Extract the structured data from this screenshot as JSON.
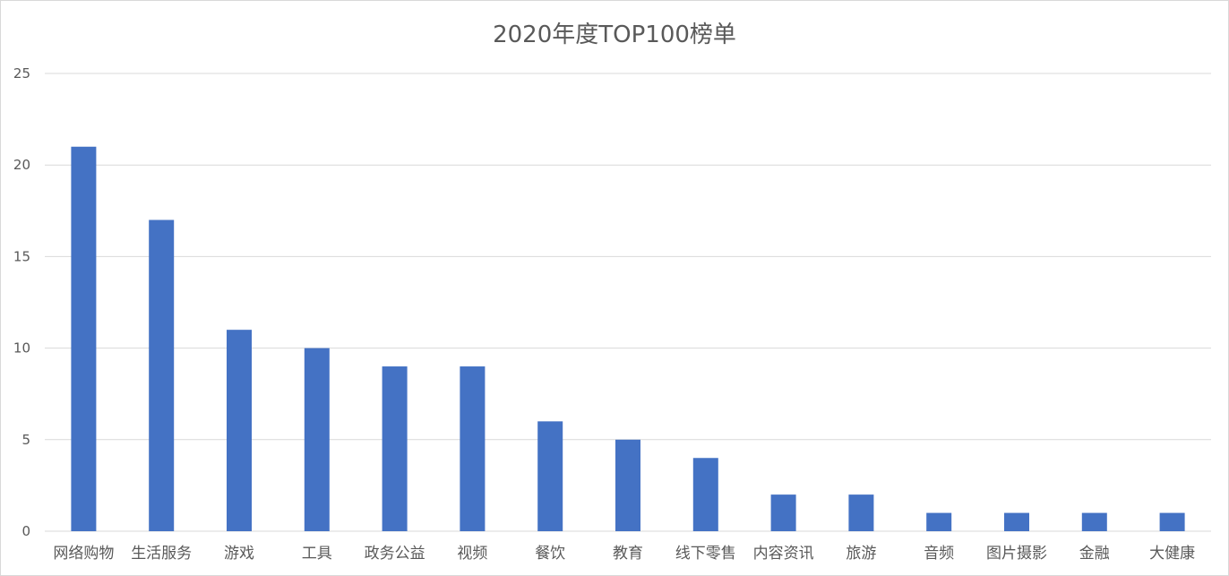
{
  "chart_data": {
    "type": "bar",
    "title": "2020年度TOP100榜单",
    "xlabel": "",
    "ylabel": "",
    "ylim": [
      0,
      25
    ],
    "yticks": [
      0,
      5,
      10,
      15,
      20,
      25
    ],
    "grid": true,
    "legend": "none",
    "bar_color": "#4472C4",
    "categories": [
      "网络购物",
      "生活服务",
      "游戏",
      "工具",
      "政务公益",
      "视频",
      "餐饮",
      "教育",
      "线下零售",
      "内容资讯",
      "旅游",
      "音频",
      "图片摄影",
      "金融",
      "大健康"
    ],
    "values": [
      21,
      17,
      11,
      10,
      9,
      9,
      6,
      5,
      4,
      2,
      2,
      1,
      1,
      1,
      1
    ]
  }
}
